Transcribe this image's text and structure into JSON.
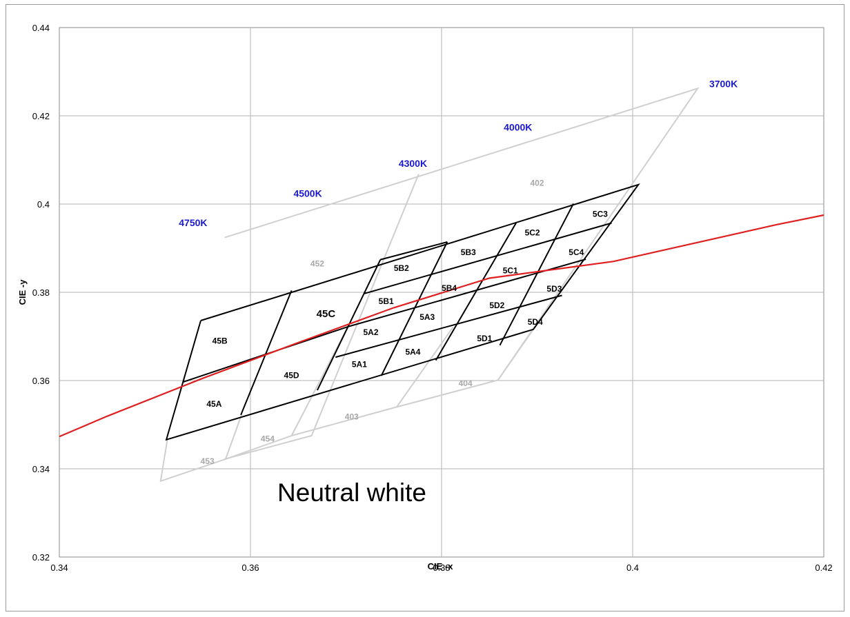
{
  "chart_data": {
    "type": "scatter",
    "title": "",
    "xlabel": "CIE -x",
    "ylabel": "CIE -y",
    "xlim": [
      0.34,
      0.42
    ],
    "ylim": [
      0.32,
      0.44
    ],
    "grid": true,
    "xticks": [
      "0.34",
      "0.36",
      "0.38",
      "0.4",
      "0.42"
    ],
    "yticks": [
      "0.32",
      "0.34",
      "0.36",
      "0.38",
      "0.4",
      "0.42",
      "0.44"
    ],
    "annotation": "Neutral white",
    "colors": {
      "grid": "#b0b0b0",
      "gray_bins": "#cfcfcf",
      "gray_labels": "#a8a8a8",
      "black_bins": "#000000",
      "blackbody": "#e02020",
      "cct": "#1a1acc"
    },
    "blackbody_curve": [
      [
        0.34,
        0.3473
      ],
      [
        0.345,
        0.3519
      ],
      [
        0.355,
        0.3605
      ],
      [
        0.365,
        0.3686
      ],
      [
        0.375,
        0.3765
      ],
      [
        0.385,
        0.3832
      ],
      [
        0.398,
        0.387
      ],
      [
        0.415,
        0.3953
      ],
      [
        0.42,
        0.3975
      ]
    ],
    "cct_labels": [
      {
        "text": "4750K",
        "x": 0.354,
        "y": 0.3958
      },
      {
        "text": "4500K",
        "x": 0.366,
        "y": 0.4024
      },
      {
        "text": "4300K",
        "x": 0.377,
        "y": 0.4092
      },
      {
        "text": "4000K",
        "x": 0.388,
        "y": 0.4174
      },
      {
        "text": "3700K",
        "x": 0.4095,
        "y": 0.4273
      }
    ],
    "gray_bins": [
      {
        "name": "452",
        "x": 0.367,
        "y": 0.3865,
        "corners": [
          [
            0.3573,
            0.3924
          ],
          [
            0.3776,
            0.4068
          ],
          [
            0.3664,
            0.3475
          ],
          [
            0.3574,
            0.3422
          ]
        ]
      },
      {
        "name": "402",
        "x": 0.39,
        "y": 0.4048,
        "corners": [
          [
            0.3776,
            0.4068
          ],
          [
            0.4068,
            0.4262
          ],
          [
            0.3859,
            0.3601
          ],
          [
            0.3664,
            0.3475
          ]
        ]
      },
      {
        "name": "453",
        "x": 0.3555,
        "y": 0.3417,
        "corners": [
          [
            0.3574,
            0.3422
          ],
          [
            0.3506,
            0.3372
          ],
          [
            0.3513,
            0.3466
          ]
        ]
      },
      {
        "name": "454",
        "x": 0.3618,
        "y": 0.3468,
        "corners": [
          [
            0.3574,
            0.3422
          ],
          [
            0.3643,
            0.3475
          ],
          [
            0.3591,
            0.3524
          ]
        ]
      },
      {
        "name": "403",
        "x": 0.3706,
        "y": 0.3518,
        "corners": [
          [
            0.3643,
            0.3475
          ],
          [
            0.3753,
            0.354
          ],
          [
            0.367,
            0.358
          ]
        ]
      },
      {
        "name": "404",
        "x": 0.3825,
        "y": 0.3594,
        "corners": [
          [
            0.3753,
            0.354
          ],
          [
            0.3859,
            0.3601
          ],
          [
            0.3896,
            0.3716
          ]
        ]
      }
    ],
    "black_bins": [
      {
        "name": "45A",
        "x": 0.3562,
        "y": 0.3547,
        "corners": [
          [
            0.353,
            0.3597
          ],
          [
            0.3613,
            0.3659
          ],
          [
            0.359,
            0.3522
          ],
          [
            0.3512,
            0.3466
          ]
        ]
      },
      {
        "name": "45B",
        "x": 0.3568,
        "y": 0.369,
        "corners": [
          [
            0.3548,
            0.3736
          ],
          [
            0.3643,
            0.3804
          ],
          [
            0.3613,
            0.3659
          ],
          [
            0.353,
            0.3597
          ]
        ]
      },
      {
        "name": "45C",
        "x": 0.3679,
        "y": 0.375,
        "corners": [
          [
            0.3643,
            0.3804
          ],
          [
            0.3736,
            0.3874
          ],
          [
            0.3702,
            0.3722
          ],
          [
            0.3613,
            0.3659
          ]
        ]
      },
      {
        "name": "45D",
        "x": 0.3643,
        "y": 0.3612,
        "corners": [
          [
            0.3613,
            0.3659
          ],
          [
            0.3702,
            0.3722
          ],
          [
            0.367,
            0.3578
          ],
          [
            0.359,
            0.3522
          ]
        ]
      },
      {
        "name": "5A1",
        "x": 0.3714,
        "y": 0.3637,
        "corners": [
          [
            0.3689,
            0.3653
          ],
          [
            0.3753,
            0.3689
          ],
          [
            0.3737,
            0.3611
          ],
          [
            0.367,
            0.3578
          ]
        ]
      },
      {
        "name": "5A2",
        "x": 0.3726,
        "y": 0.3709,
        "corners": [
          [
            0.3702,
            0.3722
          ],
          [
            0.3768,
            0.3763
          ],
          [
            0.3753,
            0.3689
          ],
          [
            0.3689,
            0.3653
          ]
        ]
      },
      {
        "name": "5A3",
        "x": 0.3785,
        "y": 0.3744,
        "corners": [
          [
            0.3768,
            0.3763
          ],
          [
            0.3835,
            0.3798
          ],
          [
            0.3812,
            0.3721
          ],
          [
            0.3753,
            0.3689
          ]
        ]
      },
      {
        "name": "5A4",
        "x": 0.377,
        "y": 0.3665,
        "corners": [
          [
            0.3753,
            0.3689
          ],
          [
            0.3812,
            0.3721
          ],
          [
            0.3794,
            0.3646
          ],
          [
            0.3737,
            0.3611
          ]
        ]
      },
      {
        "name": "5B1",
        "x": 0.3742,
        "y": 0.378,
        "corners": [
          [
            0.3719,
            0.3797
          ],
          [
            0.3788,
            0.3836
          ],
          [
            0.3768,
            0.3763
          ],
          [
            0.3702,
            0.3722
          ]
        ]
      },
      {
        "name": "5B2",
        "x": 0.3758,
        "y": 0.3855,
        "corners": [
          [
            0.3736,
            0.3874
          ],
          [
            0.3806,
            0.3914
          ],
          [
            0.3788,
            0.3836
          ],
          [
            0.3719,
            0.3797
          ]
        ]
      },
      {
        "name": "5B3",
        "x": 0.3828,
        "y": 0.3891,
        "corners": [
          [
            0.3806,
            0.3914
          ],
          [
            0.3878,
            0.3957
          ],
          [
            0.3855,
            0.3871
          ],
          [
            0.3788,
            0.3836
          ]
        ]
      },
      {
        "name": "5B4",
        "x": 0.3808,
        "y": 0.3809,
        "corners": [
          [
            0.3788,
            0.3836
          ],
          [
            0.3855,
            0.3871
          ],
          [
            0.3835,
            0.3798
          ],
          [
            0.3768,
            0.3763
          ]
        ]
      },
      {
        "name": "5C1",
        "x": 0.3872,
        "y": 0.3849,
        "corners": [
          [
            0.3855,
            0.3871
          ],
          [
            0.3923,
            0.3914
          ],
          [
            0.3902,
            0.3833
          ],
          [
            0.3835,
            0.3798
          ]
        ]
      },
      {
        "name": "5C2",
        "x": 0.3895,
        "y": 0.3935,
        "corners": [
          [
            0.3878,
            0.3957
          ],
          [
            0.3938,
            0.4001
          ],
          [
            0.3923,
            0.3914
          ],
          [
            0.3855,
            0.3871
          ]
        ]
      },
      {
        "name": "5C3",
        "x": 0.3966,
        "y": 0.3977,
        "corners": [
          [
            0.3938,
            0.4001
          ],
          [
            0.4006,
            0.4044
          ],
          [
            0.3978,
            0.3957
          ],
          [
            0.3923,
            0.3914
          ]
        ]
      },
      {
        "name": "5C4",
        "x": 0.3941,
        "y": 0.3891,
        "corners": [
          [
            0.3923,
            0.3914
          ],
          [
            0.3978,
            0.3957
          ],
          [
            0.3951,
            0.3875
          ],
          [
            0.3902,
            0.3833
          ]
        ]
      },
      {
        "name": "5D1",
        "x": 0.3845,
        "y": 0.3695,
        "corners": [
          [
            0.3835,
            0.3798
          ],
          [
            0.3902,
            0.3833
          ],
          [
            0.3861,
            0.368
          ],
          [
            0.3794,
            0.3646
          ]
        ]
      },
      {
        "name": "5D2",
        "x": 0.3858,
        "y": 0.377,
        "corners": [
          [
            0.3812,
            0.3721
          ],
          [
            0.3902,
            0.3833
          ],
          [
            0.3879,
            0.3759
          ],
          [
            0.3835,
            0.3798
          ]
        ]
      },
      {
        "name": "5D3",
        "x": 0.3918,
        "y": 0.3808,
        "corners": [
          [
            0.3902,
            0.3833
          ],
          [
            0.3951,
            0.3875
          ],
          [
            0.3926,
            0.3793
          ],
          [
            0.3879,
            0.3759
          ]
        ]
      },
      {
        "name": "5D4",
        "x": 0.3898,
        "y": 0.3733,
        "corners": [
          [
            0.3879,
            0.3759
          ],
          [
            0.3926,
            0.3793
          ],
          [
            0.3897,
            0.3716
          ],
          [
            0.3861,
            0.368
          ]
        ]
      }
    ],
    "gray_outlines": [
      [
        [
          0.3573,
          0.3924
        ],
        [
          0.4068,
          0.4262
        ],
        [
          0.3859,
          0.3601
        ],
        [
          0.3753,
          0.354
        ],
        [
          0.3643,
          0.3475
        ],
        [
          0.3574,
          0.3422
        ],
        [
          0.3506,
          0.3372
        ],
        [
          0.3513,
          0.3466
        ]
      ],
      [
        [
          0.3776,
          0.4068
        ],
        [
          0.3664,
          0.3475
        ],
        [
          0.3573,
          0.3422
        ]
      ],
      [
        [
          0.3591,
          0.3524
        ],
        [
          0.3574,
          0.3422
        ]
      ],
      [
        [
          0.3643,
          0.3475
        ],
        [
          0.3702,
          0.3722
        ]
      ],
      [
        [
          0.3753,
          0.354
        ],
        [
          0.3812,
          0.3721
        ]
      ],
      [
        [
          0.3859,
          0.3601
        ],
        [
          0.3896,
          0.3716
        ]
      ]
    ],
    "black_outlines": [
      [
        [
          0.3548,
          0.3736
        ],
        [
          0.4006,
          0.4044
        ],
        [
          0.3896,
          0.3716
        ],
        [
          0.3512,
          0.3466
        ],
        [
          0.3548,
          0.3736
        ]
      ],
      [
        [
          0.353,
          0.3597
        ],
        [
          0.3702,
          0.3722
        ],
        [
          0.3951,
          0.3875
        ]
      ],
      [
        [
          0.3643,
          0.3804
        ],
        [
          0.359,
          0.3522
        ]
      ],
      [
        [
          0.3736,
          0.3874
        ],
        [
          0.367,
          0.3578
        ]
      ],
      [
        [
          0.3806,
          0.3914
        ],
        [
          0.3737,
          0.3611
        ]
      ],
      [
        [
          0.3878,
          0.3957
        ],
        [
          0.3794,
          0.3646
        ]
      ],
      [
        [
          0.3938,
          0.4001
        ],
        [
          0.3861,
          0.368
        ]
      ],
      [
        [
          0.3719,
          0.3797
        ],
        [
          0.3978,
          0.3957
        ]
      ],
      [
        [
          0.3689,
          0.3653
        ],
        [
          0.3926,
          0.3793
        ]
      ],
      [
        [
          0.3736,
          0.3874
        ],
        [
          0.3806,
          0.3914
        ]
      ]
    ]
  }
}
